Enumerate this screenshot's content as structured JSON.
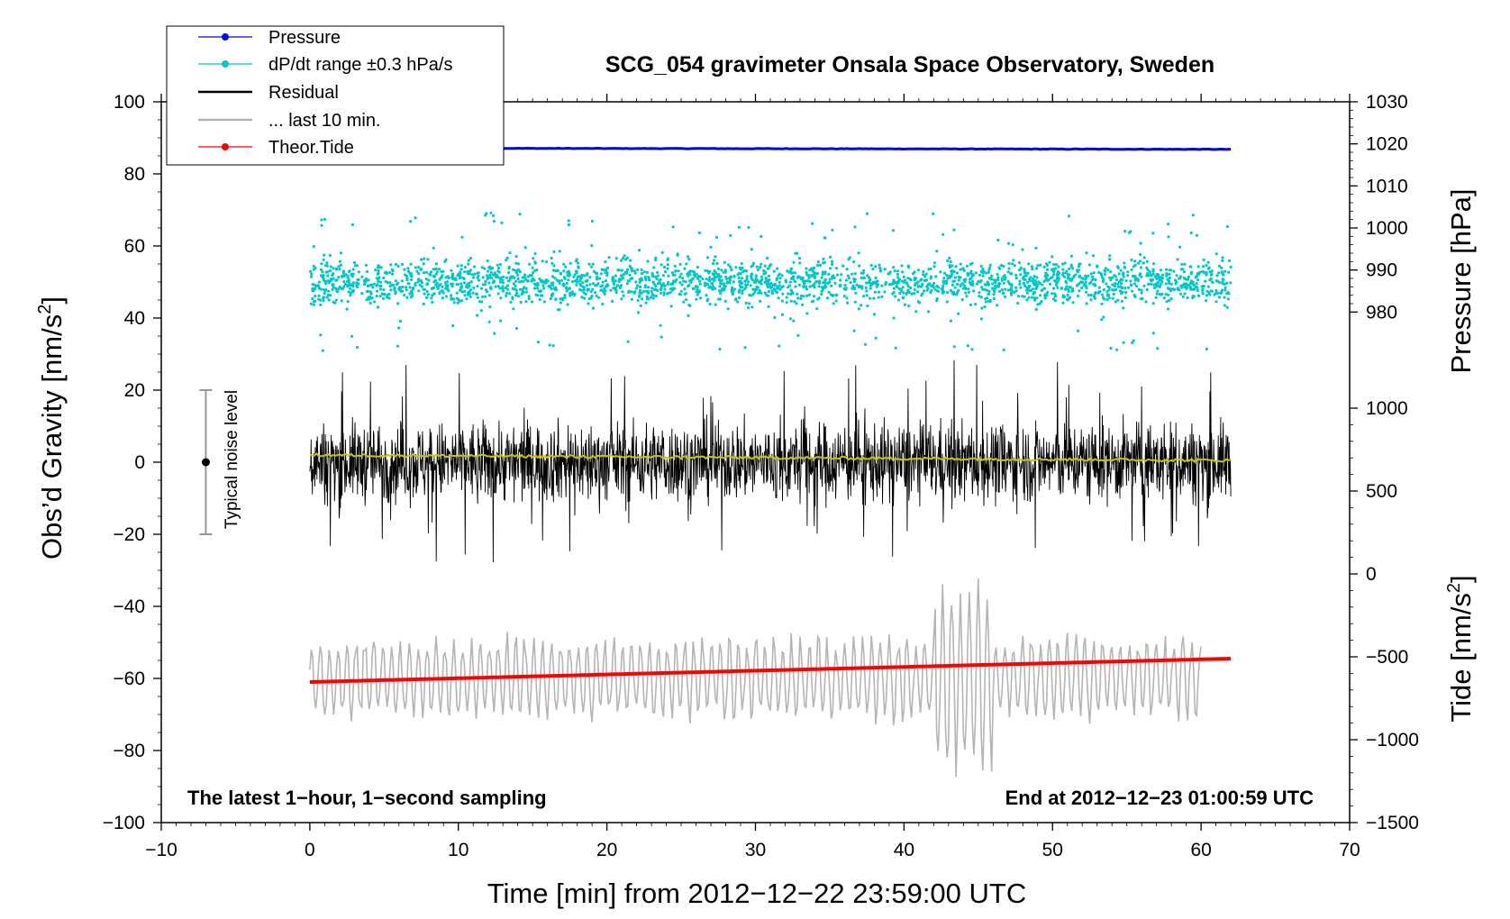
{
  "chart_data": {
    "type": "line",
    "title": "SCG_054 gravimeter Onsala Space Observatory, Sweden",
    "xlabel": "Time [min] from 2012−12−22 23:59:00 UTC",
    "ylabel_left": "Obs’d Gravity [nm/s",
    "ylabel_left_sup": "2",
    "ylabel_left_close": "]",
    "ylabel_right_top": "Pressure [hPa]",
    "ylabel_right_bottom": "Tide [nm/s",
    "ylabel_right_bottom_sup": "2",
    "ylabel_right_bottom_close": "]",
    "xlim": [
      -10,
      70
    ],
    "ylim_left": [
      -100,
      100
    ],
    "pressure_axis_range": [
      970,
      1030
    ],
    "tide_axis_range": [
      -1500,
      1000
    ],
    "x_ticks": [
      -10,
      0,
      10,
      20,
      30,
      40,
      50,
      60,
      70
    ],
    "x_tick_labels": [
      "−10",
      "0",
      "10",
      "20",
      "30",
      "40",
      "50",
      "60",
      "70"
    ],
    "y_left_ticks": [
      -100,
      -80,
      -60,
      -40,
      -20,
      0,
      20,
      40,
      60,
      80,
      100
    ],
    "y_left_tick_labels": [
      "−100",
      "−80",
      "−60",
      "−40",
      "−20",
      "0",
      "20",
      "40",
      "60",
      "80",
      "100"
    ],
    "pressure_ticks": [
      980,
      990,
      1000,
      1010,
      1020,
      1030
    ],
    "pressure_tick_labels": [
      "980",
      "990",
      "1000",
      "1010",
      "1020",
      "1030"
    ],
    "tide_ticks": [
      -1500,
      -1000,
      -500,
      0,
      500,
      1000
    ],
    "tide_tick_labels": [
      "−1500",
      "−1000",
      "−500",
      "0",
      "500",
      "1000"
    ],
    "legend_position": "top-left",
    "legend": [
      {
        "label": "Pressure",
        "color": "#0000ff",
        "marker": true
      },
      {
        "label": "dP/dt range ±0.3 hPa/s",
        "color": "#00c8c8",
        "marker": true
      },
      {
        "label": "Residual",
        "color": "#000000",
        "marker": false
      },
      {
        "label": "... last 10 min.",
        "color": "#b4b4b4",
        "marker": false
      },
      {
        "label": "Theor.Tide",
        "color": "#ff0000",
        "marker": true
      }
    ],
    "annotation_left": "The latest 1−hour, 1−second sampling",
    "annotation_right": "End at 2012−12−23 01:00:59 UTC",
    "noise_bar": {
      "x": -7,
      "center": 0,
      "half_range": 20,
      "label": "Typical noise level"
    },
    "series": {
      "pressure": {
        "name": "Pressure",
        "color": "#0000ff",
        "x_range": [
          0,
          62
        ],
        "start_hpa": 1019.0,
        "end_hpa": 1018.7
      },
      "dpdt": {
        "name": "dP/dt range ±0.3 hPa/s",
        "color": "#00c8c8",
        "x_range": [
          0,
          62
        ],
        "center": 50,
        "typical_spread": 3,
        "max_spread": 26
      },
      "residual": {
        "name": "Residual",
        "color": "#000000",
        "x_range": [
          0,
          62
        ],
        "center": 0,
        "typical_amplitude": 10,
        "max_amplitude": 30
      },
      "residual_smooth": {
        "name": "Residual mean",
        "color": "#c8c800",
        "start": 2,
        "end": 0.5
      },
      "last10": {
        "name": "... last 10 min.",
        "color": "#b4b4b4",
        "x_range": [
          0,
          60
        ],
        "center": -60,
        "typical_amplitude": 12,
        "max_amplitude": 28
      },
      "tide": {
        "name": "Theor.Tide",
        "color": "#ff0000",
        "x_range": [
          0,
          62
        ],
        "start": -61,
        "end": -54.5
      }
    }
  },
  "colors": {
    "axis": "#000000",
    "background": "#ffffff"
  }
}
